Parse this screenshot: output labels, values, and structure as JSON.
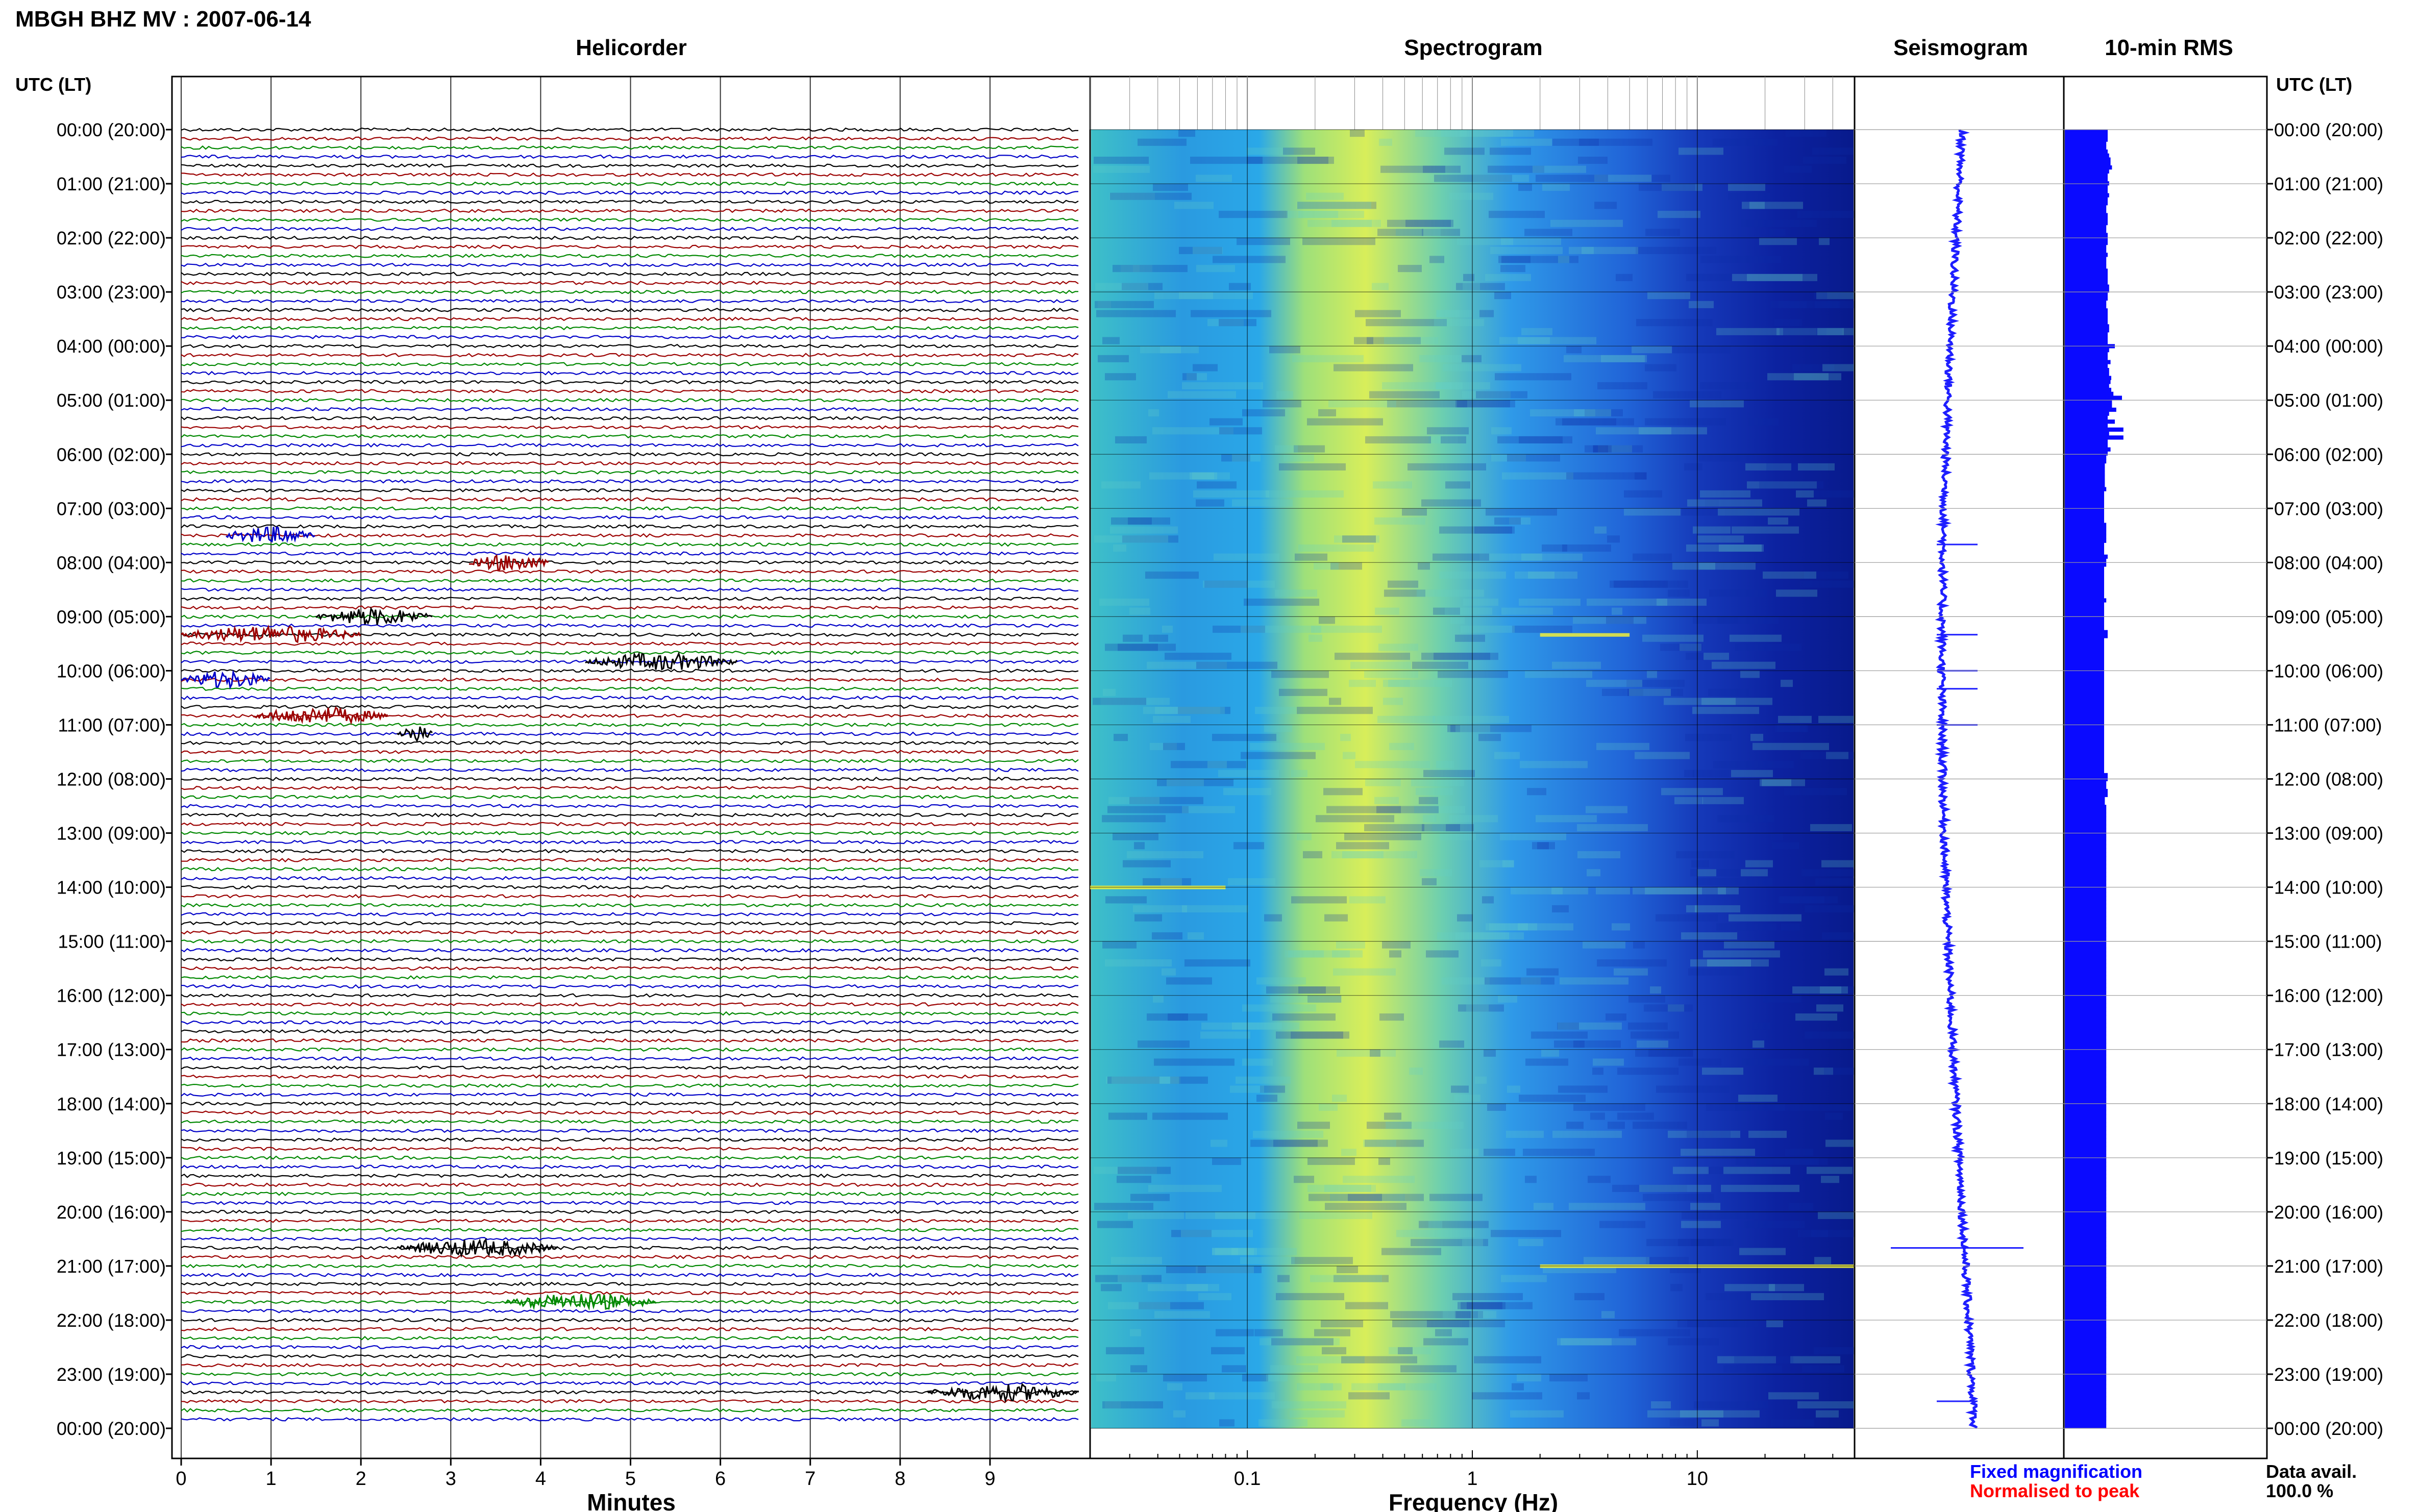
{
  "header": {
    "station_title": "MBGH BHZ MV : 2007-06-14",
    "utc_lt_left": "UTC (LT)",
    "utc_lt_right": "UTC (LT)"
  },
  "panels": {
    "helicorder": "Helicorder",
    "spectrogram": "Spectrogram",
    "seismogram": "Seismogram",
    "rms": "10-min RMS"
  },
  "footer": {
    "minutes_label": "Minutes",
    "frequency_label": "Frequency (Hz)",
    "fixed_magnification": "Fixed magnification",
    "normalised_to_peak": "Normalised to peak",
    "data_avail_label": "Data avail.",
    "data_avail_value": "100.0 %"
  },
  "colors": {
    "trace_black": "#000000",
    "trace_red": "#9b0000",
    "trace_green": "#008800",
    "trace_blue": "#0000c8",
    "seismogram_blue": "#1e1eff",
    "rms_blue": "#0a0aff",
    "fixed_magnification": "#0000ff",
    "normalised_to_peak": "#ff0000",
    "spec_low": "#0a1a9a",
    "spec_mid": "#2a8ae6",
    "spec_high": "#e8f04a"
  },
  "chart_data": [
    {
      "type": "line",
      "panel": "helicorder",
      "xlabel": "Minutes",
      "x_ticks": [
        "0",
        "1",
        "2",
        "3",
        "4",
        "5",
        "6",
        "7",
        "8",
        "9"
      ],
      "xlim": [
        0,
        10
      ],
      "time_labels": [
        "00:00 (20:00)",
        "01:00 (21:00)",
        "02:00 (22:00)",
        "03:00 (23:00)",
        "04:00 (00:00)",
        "05:00 (01:00)",
        "06:00 (02:00)",
        "07:00 (03:00)",
        "08:00 (04:00)",
        "09:00 (05:00)",
        "10:00 (06:00)",
        "11:00 (07:00)",
        "12:00 (08:00)",
        "13:00 (09:00)",
        "14:00 (10:00)",
        "15:00 (11:00)",
        "16:00 (12:00)",
        "17:00 (13:00)",
        "18:00 (14:00)",
        "19:00 (15:00)",
        "20:00 (16:00)",
        "21:00 (17:00)",
        "22:00 (18:00)",
        "23:00 (19:00)",
        "00:00 (20:00)"
      ],
      "rows_per_hour": 6,
      "trace_color_cycle": [
        "black",
        "red",
        "green",
        "blue"
      ],
      "events": [
        {
          "time": "07:30",
          "minute_start": 0.5,
          "minute_end": 1.5,
          "color": "blue"
        },
        {
          "time": "08:00",
          "minute_start": 3.2,
          "minute_end": 4.1,
          "color": "red"
        },
        {
          "time": "09:00",
          "minute_start": 1.5,
          "minute_end": 2.8,
          "color": "black"
        },
        {
          "time": "09:20",
          "minute_start": 0.0,
          "minute_end": 2.0,
          "color": "red"
        },
        {
          "time": "09:50",
          "minute_start": 4.5,
          "minute_end": 6.2,
          "color": "black"
        },
        {
          "time": "10:10",
          "minute_start": 0.0,
          "minute_end": 1.0,
          "color": "blue"
        },
        {
          "time": "10:50",
          "minute_start": 0.8,
          "minute_end": 2.3,
          "color": "red"
        },
        {
          "time": "11:10",
          "minute_start": 2.4,
          "minute_end": 2.8,
          "color": "black"
        },
        {
          "time": "20:40",
          "minute_start": 2.4,
          "minute_end": 4.2,
          "color": "black"
        },
        {
          "time": "21:40",
          "minute_start": 3.6,
          "minute_end": 5.3,
          "color": "green"
        },
        {
          "time": "23:20",
          "minute_start": 8.3,
          "minute_end": 10.0,
          "color": "black"
        }
      ]
    },
    {
      "type": "heatmap",
      "panel": "spectrogram",
      "xlabel": "Frequency (Hz)",
      "x_scale": "log",
      "x_ticks": [
        "0.1",
        "1",
        "10"
      ],
      "xlim": [
        0.02,
        50
      ],
      "peak_band_hz": [
        0.2,
        0.6
      ],
      "notable_lines": [
        {
          "time": "09:20",
          "f_start": 2,
          "f_end": 5
        },
        {
          "time": "14:00",
          "f_start": 0.02,
          "f_end": 0.08
        },
        {
          "time": "21:00",
          "f_start": 2,
          "f_end": 50
        }
      ]
    },
    {
      "type": "line",
      "panel": "seismogram",
      "description_values": {
        "spikes": [
          "07:40",
          "09:20",
          "10:00",
          "10:20",
          "11:00",
          "20:40",
          "23:30"
        ]
      }
    },
    {
      "type": "bar",
      "panel": "rms",
      "categories_step_minutes": 10,
      "values": [
        0.6,
        0.6,
        0.6,
        0.58,
        0.58,
        0.6,
        0.62,
        0.64,
        0.64,
        0.66,
        0.62,
        0.6,
        0.6,
        0.62,
        0.6,
        0.6,
        0.62,
        0.6,
        0.6,
        0.58,
        0.58,
        0.6,
        0.6,
        0.6,
        0.58,
        0.58,
        0.6,
        0.6,
        0.6,
        0.58,
        0.58,
        0.6,
        0.58,
        0.58,
        0.58,
        0.6,
        0.6,
        0.6,
        0.6,
        0.62,
        0.62,
        0.6,
        0.6,
        0.58,
        0.58,
        0.6,
        0.6,
        0.6,
        0.6,
        0.62,
        0.62,
        0.6,
        0.6,
        0.6,
        0.7,
        0.62,
        0.6,
        0.6,
        0.64,
        0.6,
        0.62,
        0.62,
        0.65,
        0.64,
        0.62,
        0.65,
        0.68,
        0.8,
        0.66,
        0.66,
        0.72,
        0.62,
        0.6,
        0.7,
        0.6,
        0.82,
        0.62,
        0.82,
        0.6,
        0.6,
        0.64,
        0.6,
        0.58,
        0.58,
        0.56,
        0.56,
        0.56,
        0.56,
        0.56,
        0.56,
        0.58,
        0.55,
        0.55,
        0.55,
        0.55,
        0.55,
        0.55,
        0.55,
        0.55,
        0.58,
        0.58,
        0.58,
        0.58,
        0.58,
        0.55,
        0.55,
        0.55,
        0.6,
        0.58,
        0.58,
        0.55,
        0.55,
        0.55,
        0.55,
        0.55,
        0.55,
        0.55,
        0.55,
        0.58,
        0.55,
        0.55,
        0.55,
        0.55,
        0.55,
        0.55,
        0.55,
        0.6,
        0.6,
        0.55,
        0.55,
        0.55,
        0.55,
        0.55,
        0.55,
        0.55,
        0.55,
        0.55,
        0.55,
        0.55,
        0.55,
        0.55,
        0.55,
        0.55,
        0.55,
        0.55,
        0.55,
        0.55,
        0.55,
        0.55,
        0.55,
        0.55,
        0.55,
        0.55,
        0.55,
        0.55,
        0.55,
        0.55,
        0.55,
        0.55,
        0.55,
        0.55,
        0.55,
        0.6,
        0.6,
        0.58,
        0.58,
        0.6,
        0.6,
        0.56,
        0.56,
        0.58,
        0.58,
        0.58,
        0.58,
        0.58,
        0.58,
        0.58,
        0.58,
        0.58,
        0.58,
        0.58,
        0.58,
        0.58,
        0.58,
        0.58,
        0.58,
        0.58,
        0.58,
        0.58,
        0.58,
        0.58,
        0.58,
        0.58,
        0.58,
        0.58,
        0.58,
        0.58,
        0.58,
        0.58,
        0.58,
        0.58,
        0.58,
        0.58,
        0.58,
        0.58,
        0.58,
        0.58,
        0.58,
        0.58,
        0.58,
        0.58,
        0.58,
        0.58,
        0.58,
        0.58,
        0.58,
        0.58,
        0.58,
        0.58,
        0.58,
        0.58,
        0.58,
        0.58,
        0.58,
        0.58,
        0.58,
        0.58,
        0.58,
        0.58,
        0.58,
        0.58,
        0.58,
        0.58,
        0.58,
        0.58,
        0.58,
        0.58,
        0.58,
        0.58,
        0.58,
        0.58,
        0.58,
        0.58,
        0.58,
        0.58,
        0.58,
        0.58,
        0.58,
        0.58,
        0.58,
        0.58,
        0.58,
        0.58,
        0.58,
        0.58,
        0.58,
        0.58,
        0.58,
        0.58,
        0.58,
        0.58,
        0.58,
        0.58,
        0.58,
        0.58,
        0.58,
        0.58,
        0.58,
        0.58,
        0.58,
        0.58,
        0.58,
        0.58,
        0.58,
        0.58,
        0.58,
        0.58,
        0.58,
        0.58,
        0.58,
        0.58,
        0.58,
        0.58,
        0.58,
        0.58,
        0.58,
        0.58,
        0.58,
        0.58,
        0.58,
        0.58,
        0.58,
        0.58,
        0.58,
        0.58,
        0.58,
        0.58,
        0.58,
        0.58,
        0.58,
        0.58,
        0.58,
        0.58,
        0.58,
        0.58,
        0.58,
        0.58,
        0.58,
        0.58,
        0.58,
        0.58,
        0.58,
        0.58,
        0.58,
        0.58,
        0.58,
        0.58,
        0.58,
        0.58,
        0.58,
        0.58,
        0.58,
        0.58,
        0.58,
        0.58,
        0.58,
        0.58
      ]
    }
  ]
}
